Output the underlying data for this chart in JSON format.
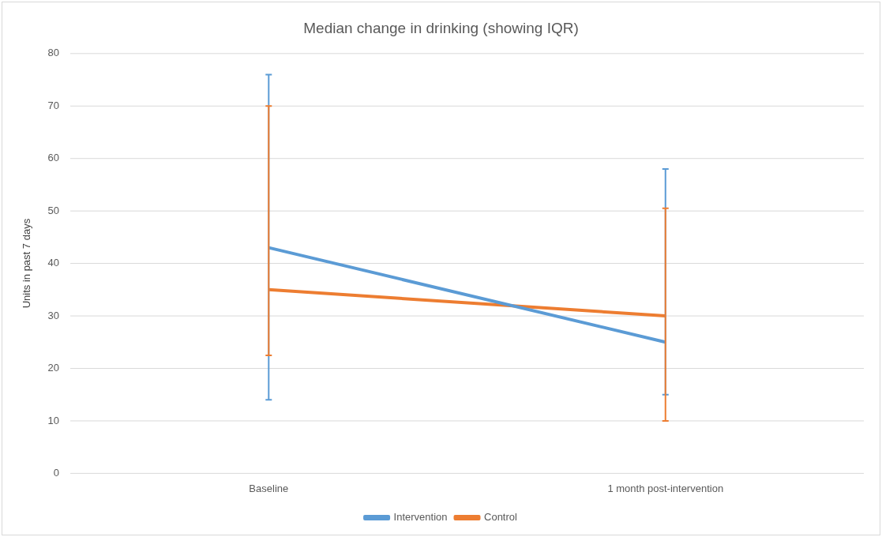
{
  "chart_data": {
    "type": "line",
    "title": "Median change in drinking (showing IQR)",
    "ylabel": "Units in past 7 days",
    "categories": [
      "Baseline",
      "1 month post-intervention"
    ],
    "series": [
      {
        "name": "Intervention",
        "color": "#5b9bd5",
        "values": [
          43,
          25
        ],
        "errors": [
          [
            14,
            76
          ],
          [
            15,
            58
          ]
        ]
      },
      {
        "name": "Control",
        "color": "#ed7d31",
        "values": [
          35,
          30
        ],
        "errors": [
          [
            22.5,
            70
          ],
          [
            10,
            50.5
          ]
        ]
      }
    ],
    "ylim": [
      0,
      80
    ],
    "yticks": [
      0,
      10,
      20,
      30,
      40,
      50,
      60,
      70,
      80
    ],
    "grid": "y",
    "legend": "bottom",
    "marker": "none",
    "line_style": "solid"
  }
}
